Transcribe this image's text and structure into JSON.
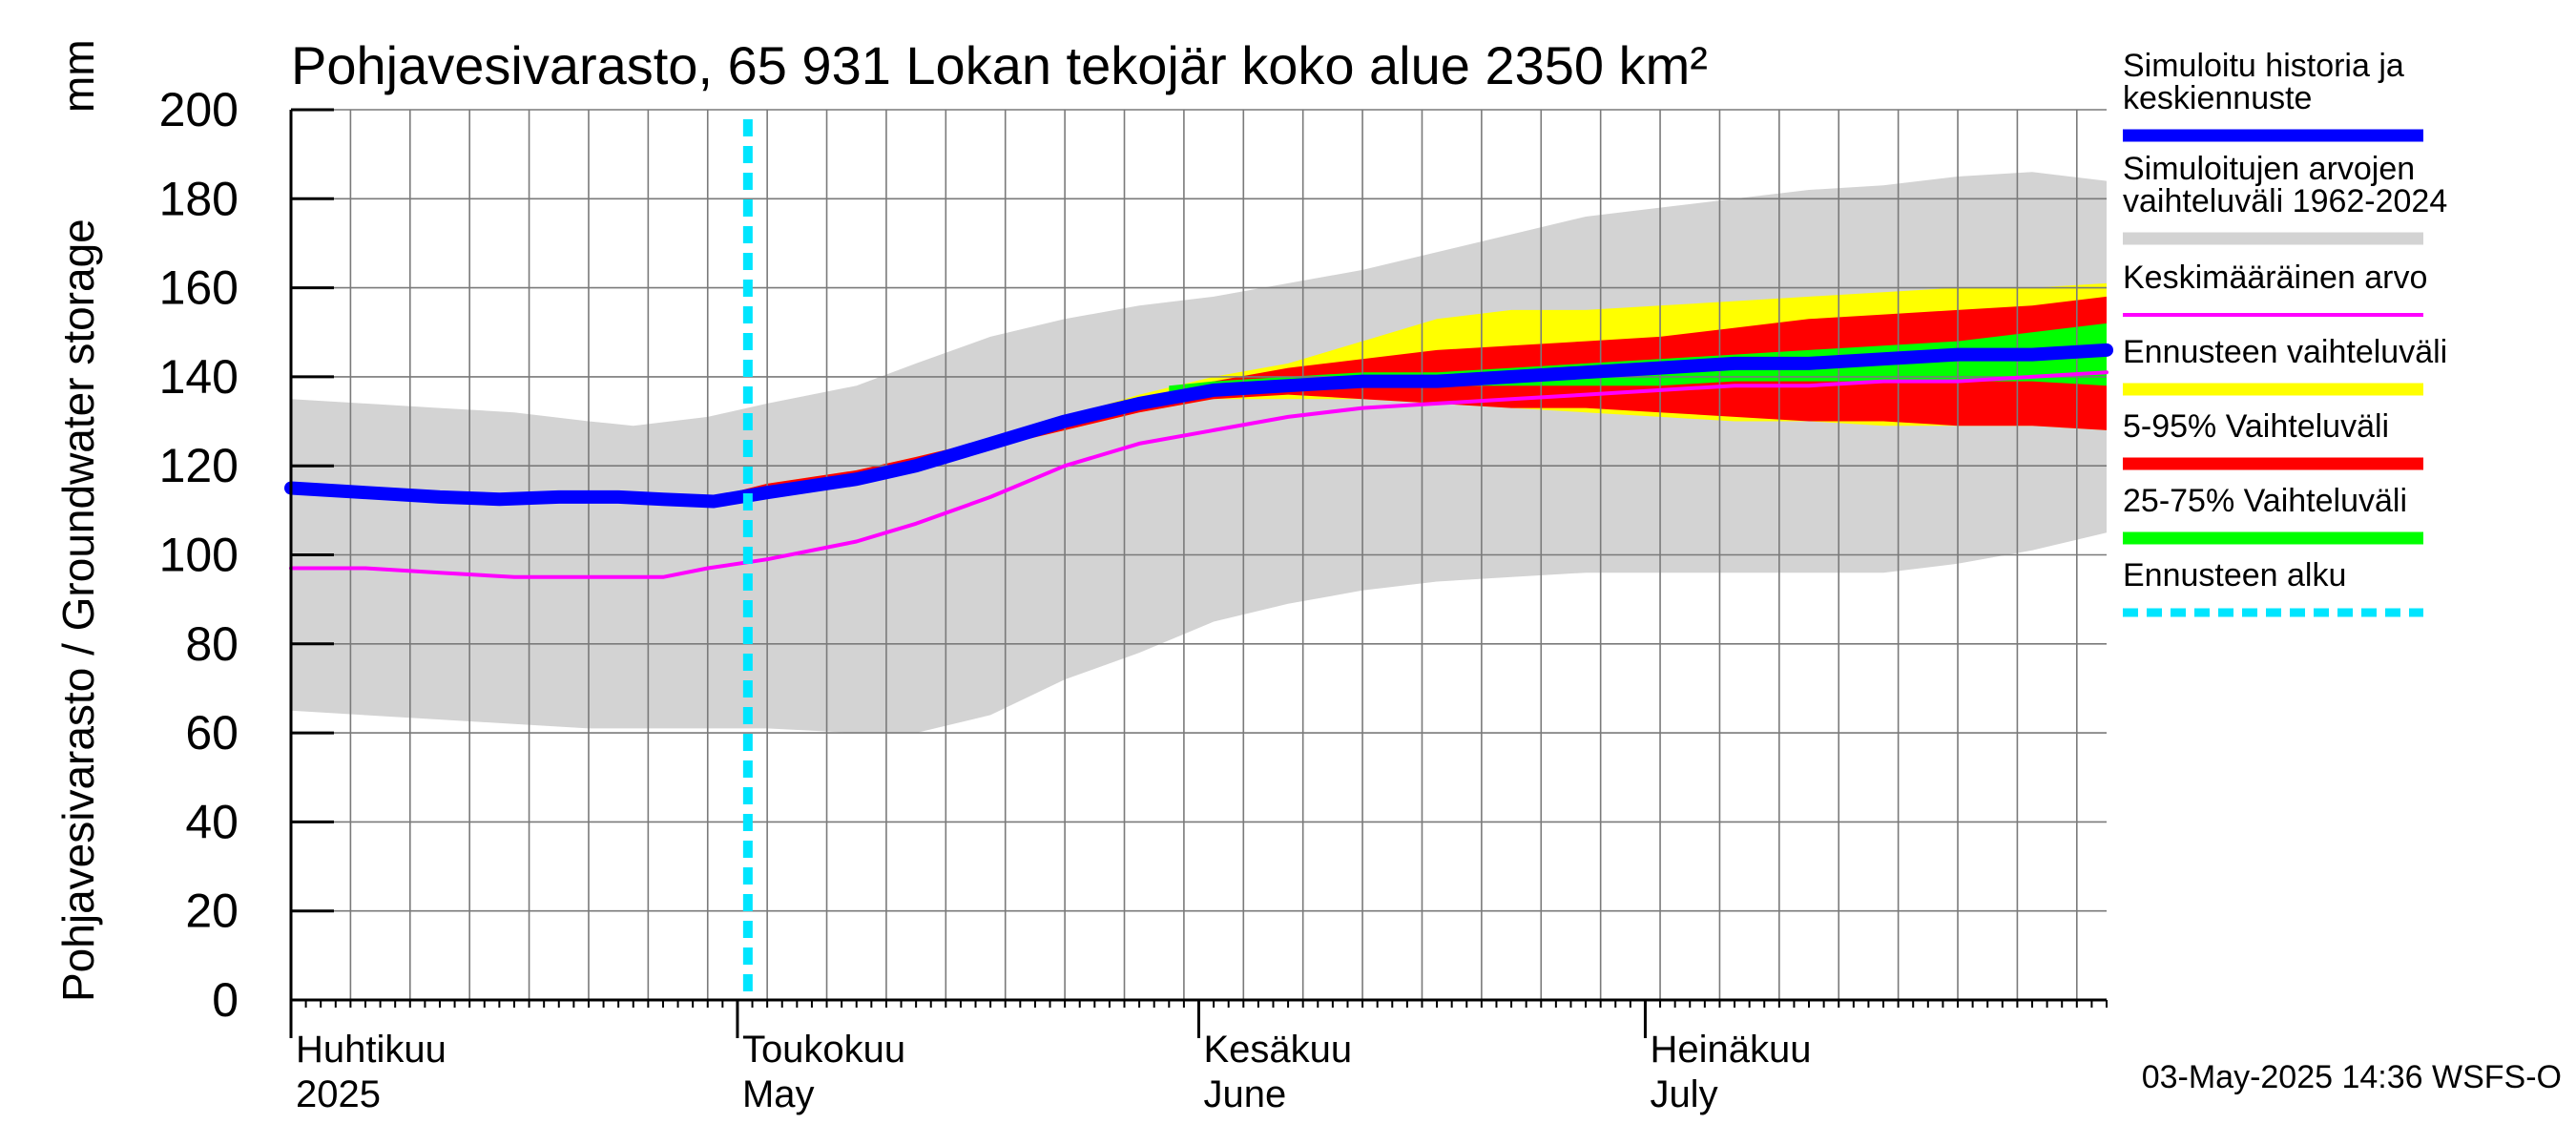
{
  "chart_data": {
    "type": "area",
    "title": "Pohjavesivarasto, 65 931 Lokan tekojär koko alue 2350 km²",
    "ylabel": "Pohjavesivarasto / Groundwater storage",
    "yunit": "mm",
    "ylim": [
      0,
      200
    ],
    "yticks": [
      0,
      20,
      40,
      60,
      80,
      100,
      120,
      140,
      160,
      180,
      200
    ],
    "grid": true,
    "xlim_days": [
      0,
      122
    ],
    "month_ticks": [
      {
        "day": 0,
        "label_fi": "Huhtikuu",
        "label_en": "2025"
      },
      {
        "day": 30,
        "label_fi": "Toukokuu",
        "label_en": "May"
      },
      {
        "day": 61,
        "label_fi": "Kesäkuu",
        "label_en": "June"
      },
      {
        "day": 91,
        "label_fi": "Heinäkuu",
        "label_en": "July"
      }
    ],
    "forecast_start_day": 30.7,
    "series": [
      {
        "name": "Simuloitujen arvojen vaihteluväli 1962-2024",
        "color": "#d3d3d3",
        "kind": "band",
        "x": [
          0,
          10,
          15,
          20,
          23,
          28,
          32,
          38,
          42,
          47,
          52,
          57,
          62,
          67,
          72,
          77,
          82,
          87,
          92,
          97,
          102,
          107,
          112,
          117,
          122
        ],
        "upper": [
          135,
          133,
          132,
          130,
          129,
          131,
          134,
          138,
          143,
          149,
          153,
          156,
          158,
          161,
          164,
          168,
          172,
          176,
          178,
          180,
          182,
          183,
          185,
          186,
          184
        ],
        "lower": [
          65,
          63,
          62,
          61,
          61,
          61,
          61,
          60,
          60,
          64,
          72,
          78,
          85,
          89,
          92,
          94,
          95,
          96,
          96,
          96,
          96,
          96,
          98,
          101,
          105
        ]
      },
      {
        "name": "Ennusteen vaihteluväli",
        "color": "#ffff00",
        "kind": "band",
        "x": [
          28.4,
          32,
          38,
          42,
          47,
          52,
          57,
          62,
          67,
          72,
          77,
          82,
          87,
          92,
          97,
          102,
          107,
          112,
          117,
          122
        ],
        "upper": [
          113,
          116,
          119,
          122,
          126,
          131,
          136,
          140,
          143,
          148,
          153,
          155,
          155,
          156,
          157,
          158,
          159,
          160,
          160,
          161
        ],
        "lower": [
          112,
          114,
          117,
          120,
          124,
          128,
          132,
          135,
          135,
          135,
          134,
          133,
          132,
          131,
          130,
          130,
          129,
          129,
          129,
          128
        ]
      },
      {
        "name": "5-95% Vaihteluväli",
        "color": "#ff0000",
        "kind": "band",
        "x": [
          28.4,
          32,
          38,
          42,
          47,
          52,
          57,
          62,
          67,
          72,
          77,
          82,
          87,
          92,
          97,
          102,
          107,
          112,
          117,
          122
        ],
        "upper": [
          113,
          116,
          119,
          122,
          126,
          131,
          135,
          139,
          142,
          144,
          146,
          147,
          148,
          149,
          151,
          153,
          154,
          155,
          156,
          158
        ],
        "lower": [
          112,
          114,
          117,
          120,
          124,
          128,
          132,
          135,
          136,
          135,
          134,
          133,
          133,
          132,
          131,
          130,
          130,
          129,
          129,
          128
        ]
      },
      {
        "name": "25-75% Vaihteluväli",
        "color": "#00ff00",
        "kind": "band",
        "x": [
          59,
          62,
          67,
          72,
          77,
          82,
          87,
          92,
          97,
          102,
          107,
          112,
          117,
          122
        ],
        "upper": [
          138,
          139,
          140,
          141,
          141,
          142,
          143,
          144,
          145,
          146,
          147,
          148,
          150,
          152
        ],
        "lower": [
          136,
          137,
          138,
          138,
          138,
          138,
          138,
          138,
          139,
          139,
          139,
          139,
          139,
          138
        ]
      },
      {
        "name": "Keskimääräinen arvo",
        "color": "#ff00ff",
        "kind": "line",
        "x": [
          0,
          5,
          10,
          15,
          20,
          25,
          28,
          32,
          38,
          42,
          47,
          52,
          57,
          62,
          67,
          72,
          77,
          82,
          87,
          92,
          97,
          102,
          107,
          112,
          117,
          122
        ],
        "y": [
          97,
          97,
          96,
          95,
          95,
          95,
          97,
          99,
          103,
          107,
          113,
          120,
          125,
          128,
          131,
          133,
          134,
          135,
          136,
          137,
          138,
          138,
          139,
          139,
          140,
          141
        ]
      },
      {
        "name": "Simuloitu historia ja keskiennuste",
        "color": "#0000ff",
        "kind": "line",
        "x": [
          0,
          5,
          10,
          14,
          18,
          22,
          25,
          28.4,
          32,
          38,
          42,
          47,
          52,
          57,
          62,
          67,
          72,
          77,
          82,
          87,
          92,
          97,
          102,
          107,
          112,
          117,
          122
        ],
        "y": [
          115,
          114,
          113,
          112.5,
          113,
          113,
          112.5,
          112,
          114,
          117,
          120,
          125,
          130,
          134,
          137,
          138,
          139,
          139,
          140,
          141,
          142,
          143,
          143,
          144,
          145,
          145,
          146
        ]
      },
      {
        "name": "Ennusteen alku",
        "color": "#00e5ff",
        "kind": "vline"
      }
    ]
  },
  "legend": [
    {
      "label": "Simuloitu historia ja keskiennuste",
      "color": "#0000ff",
      "style": "thick"
    },
    {
      "label": "Simuloitujen arvojen vaihteluväli 1962-2024",
      "color": "#d3d3d3",
      "style": "thick"
    },
    {
      "label": "Keskimääräinen arvo",
      "color": "#ff00ff",
      "style": "thin"
    },
    {
      "label": "Ennusteen vaihteluväli",
      "color": "#ffff00",
      "style": "thick"
    },
    {
      "label": "5-95% Vaihteluväli",
      "color": "#ff0000",
      "style": "thick"
    },
    {
      "label": "25-75% Vaihteluväli",
      "color": "#00ff00",
      "style": "thick"
    },
    {
      "label": "Ennusteen alku",
      "color": "#00e5ff",
      "style": "dashed"
    }
  ],
  "footer": "03-May-2025 14:36 WSFS-O"
}
